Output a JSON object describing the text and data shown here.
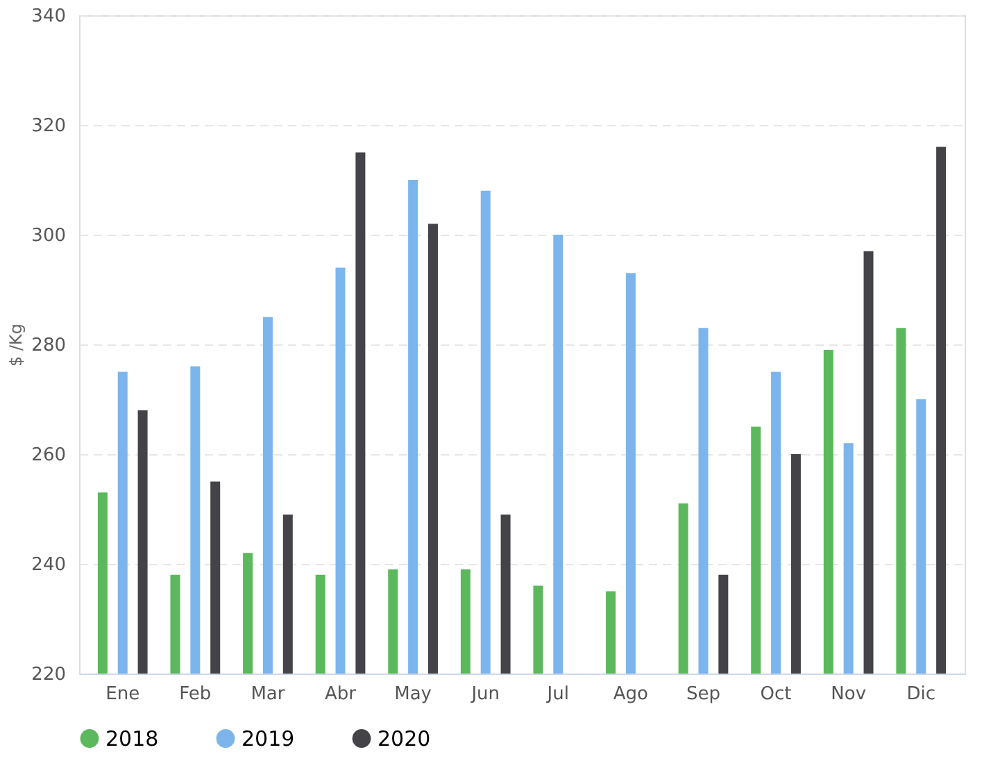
{
  "chart_data": {
    "type": "bar",
    "ylabel": "$ /Kg",
    "categories": [
      "Ene",
      "Feb",
      "Mar",
      "Abr",
      "May",
      "Jun",
      "Jul",
      "Ago",
      "Sep",
      "Oct",
      "Nov",
      "Dic"
    ],
    "series": [
      {
        "name": "2018",
        "color": "#5cb85c",
        "values": [
          253,
          238,
          242,
          238,
          239,
          239,
          236,
          235,
          251,
          265,
          279,
          283
        ]
      },
      {
        "name": "2019",
        "color": "#7cb5ec",
        "values": [
          275,
          276,
          285,
          294,
          310,
          308,
          300,
          293,
          283,
          275,
          262,
          270
        ]
      },
      {
        "name": "2020",
        "color": "#434348",
        "values": [
          268,
          255,
          249,
          315,
          302,
          249,
          null,
          null,
          238,
          260,
          297,
          316
        ]
      }
    ],
    "ylim": [
      220,
      340
    ],
    "yticks": [
      220,
      240,
      260,
      280,
      300,
      320,
      340
    ],
    "grid": "y",
    "legend": "bottom"
  }
}
